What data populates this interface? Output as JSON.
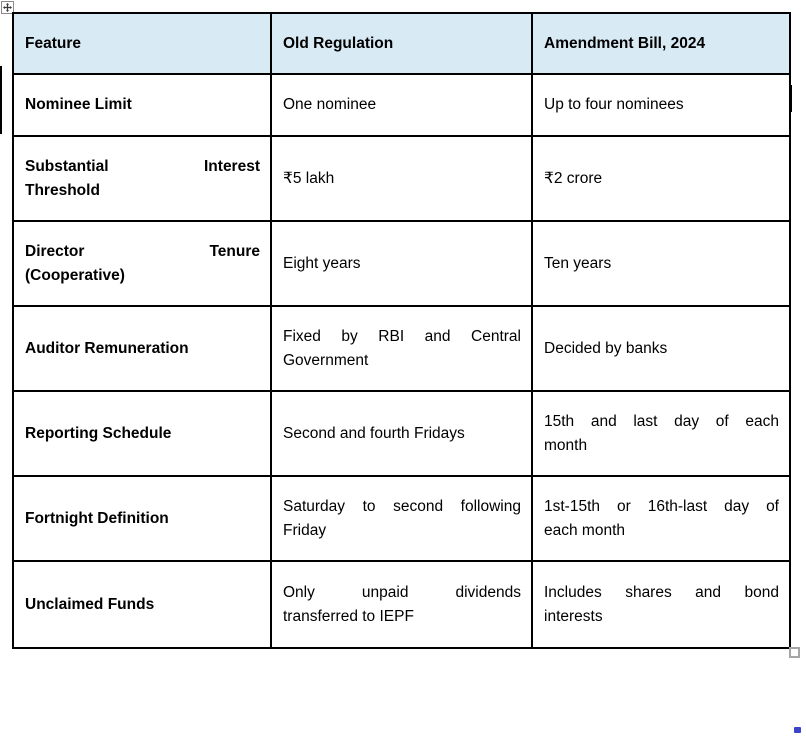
{
  "table": {
    "headers": [
      "Feature",
      "Old Regulation",
      "Amendment Bill, 2024"
    ],
    "rows": [
      {
        "feature": [
          "Nominee Limit"
        ],
        "old_regulation": [
          "One nominee"
        ],
        "amendment_bill": [
          "Up to four nominees"
        ]
      },
      {
        "feature": [
          "Substantial Interest",
          "Threshold"
        ],
        "old_regulation": [
          "₹5 lakh"
        ],
        "amendment_bill": [
          "₹2 crore"
        ]
      },
      {
        "feature": [
          "Director Tenure",
          "(Cooperative)"
        ],
        "old_regulation": [
          "Eight years"
        ],
        "amendment_bill": [
          "Ten years"
        ]
      },
      {
        "feature": [
          "Auditor Remuneration"
        ],
        "old_regulation": [
          "Fixed by RBI and Central",
          "Government"
        ],
        "amendment_bill": [
          "Decided by banks"
        ]
      },
      {
        "feature": [
          "Reporting Schedule"
        ],
        "old_regulation": [
          "Second and fourth Fridays"
        ],
        "amendment_bill": [
          "15th and last day of each",
          "month"
        ]
      },
      {
        "feature": [
          "Fortnight Definition"
        ],
        "old_regulation": [
          "Saturday to second following",
          "Friday"
        ],
        "amendment_bill": [
          "1st-15th or 16th-last day of",
          "each month"
        ]
      },
      {
        "feature": [
          "Unclaimed Funds"
        ],
        "old_regulation": [
          "Only unpaid dividends",
          "transferred to IEPF"
        ],
        "amendment_bill": [
          "Includes shares and bond",
          "interests"
        ]
      }
    ]
  },
  "colors": {
    "header_bg": "#d8eaf4",
    "table_border": "#000000",
    "text": "#000000",
    "resize_handle_border": "#a6a6a6",
    "bottom_marker": "#3b44c8",
    "page_bg": "#ffffff"
  },
  "icons": {
    "table_move_handle": "four-direction-move-arrow",
    "table_resize_handle": "square-resize-box",
    "text_cursor": "vertical-caret",
    "bottom_marker": "small-blue-square"
  }
}
